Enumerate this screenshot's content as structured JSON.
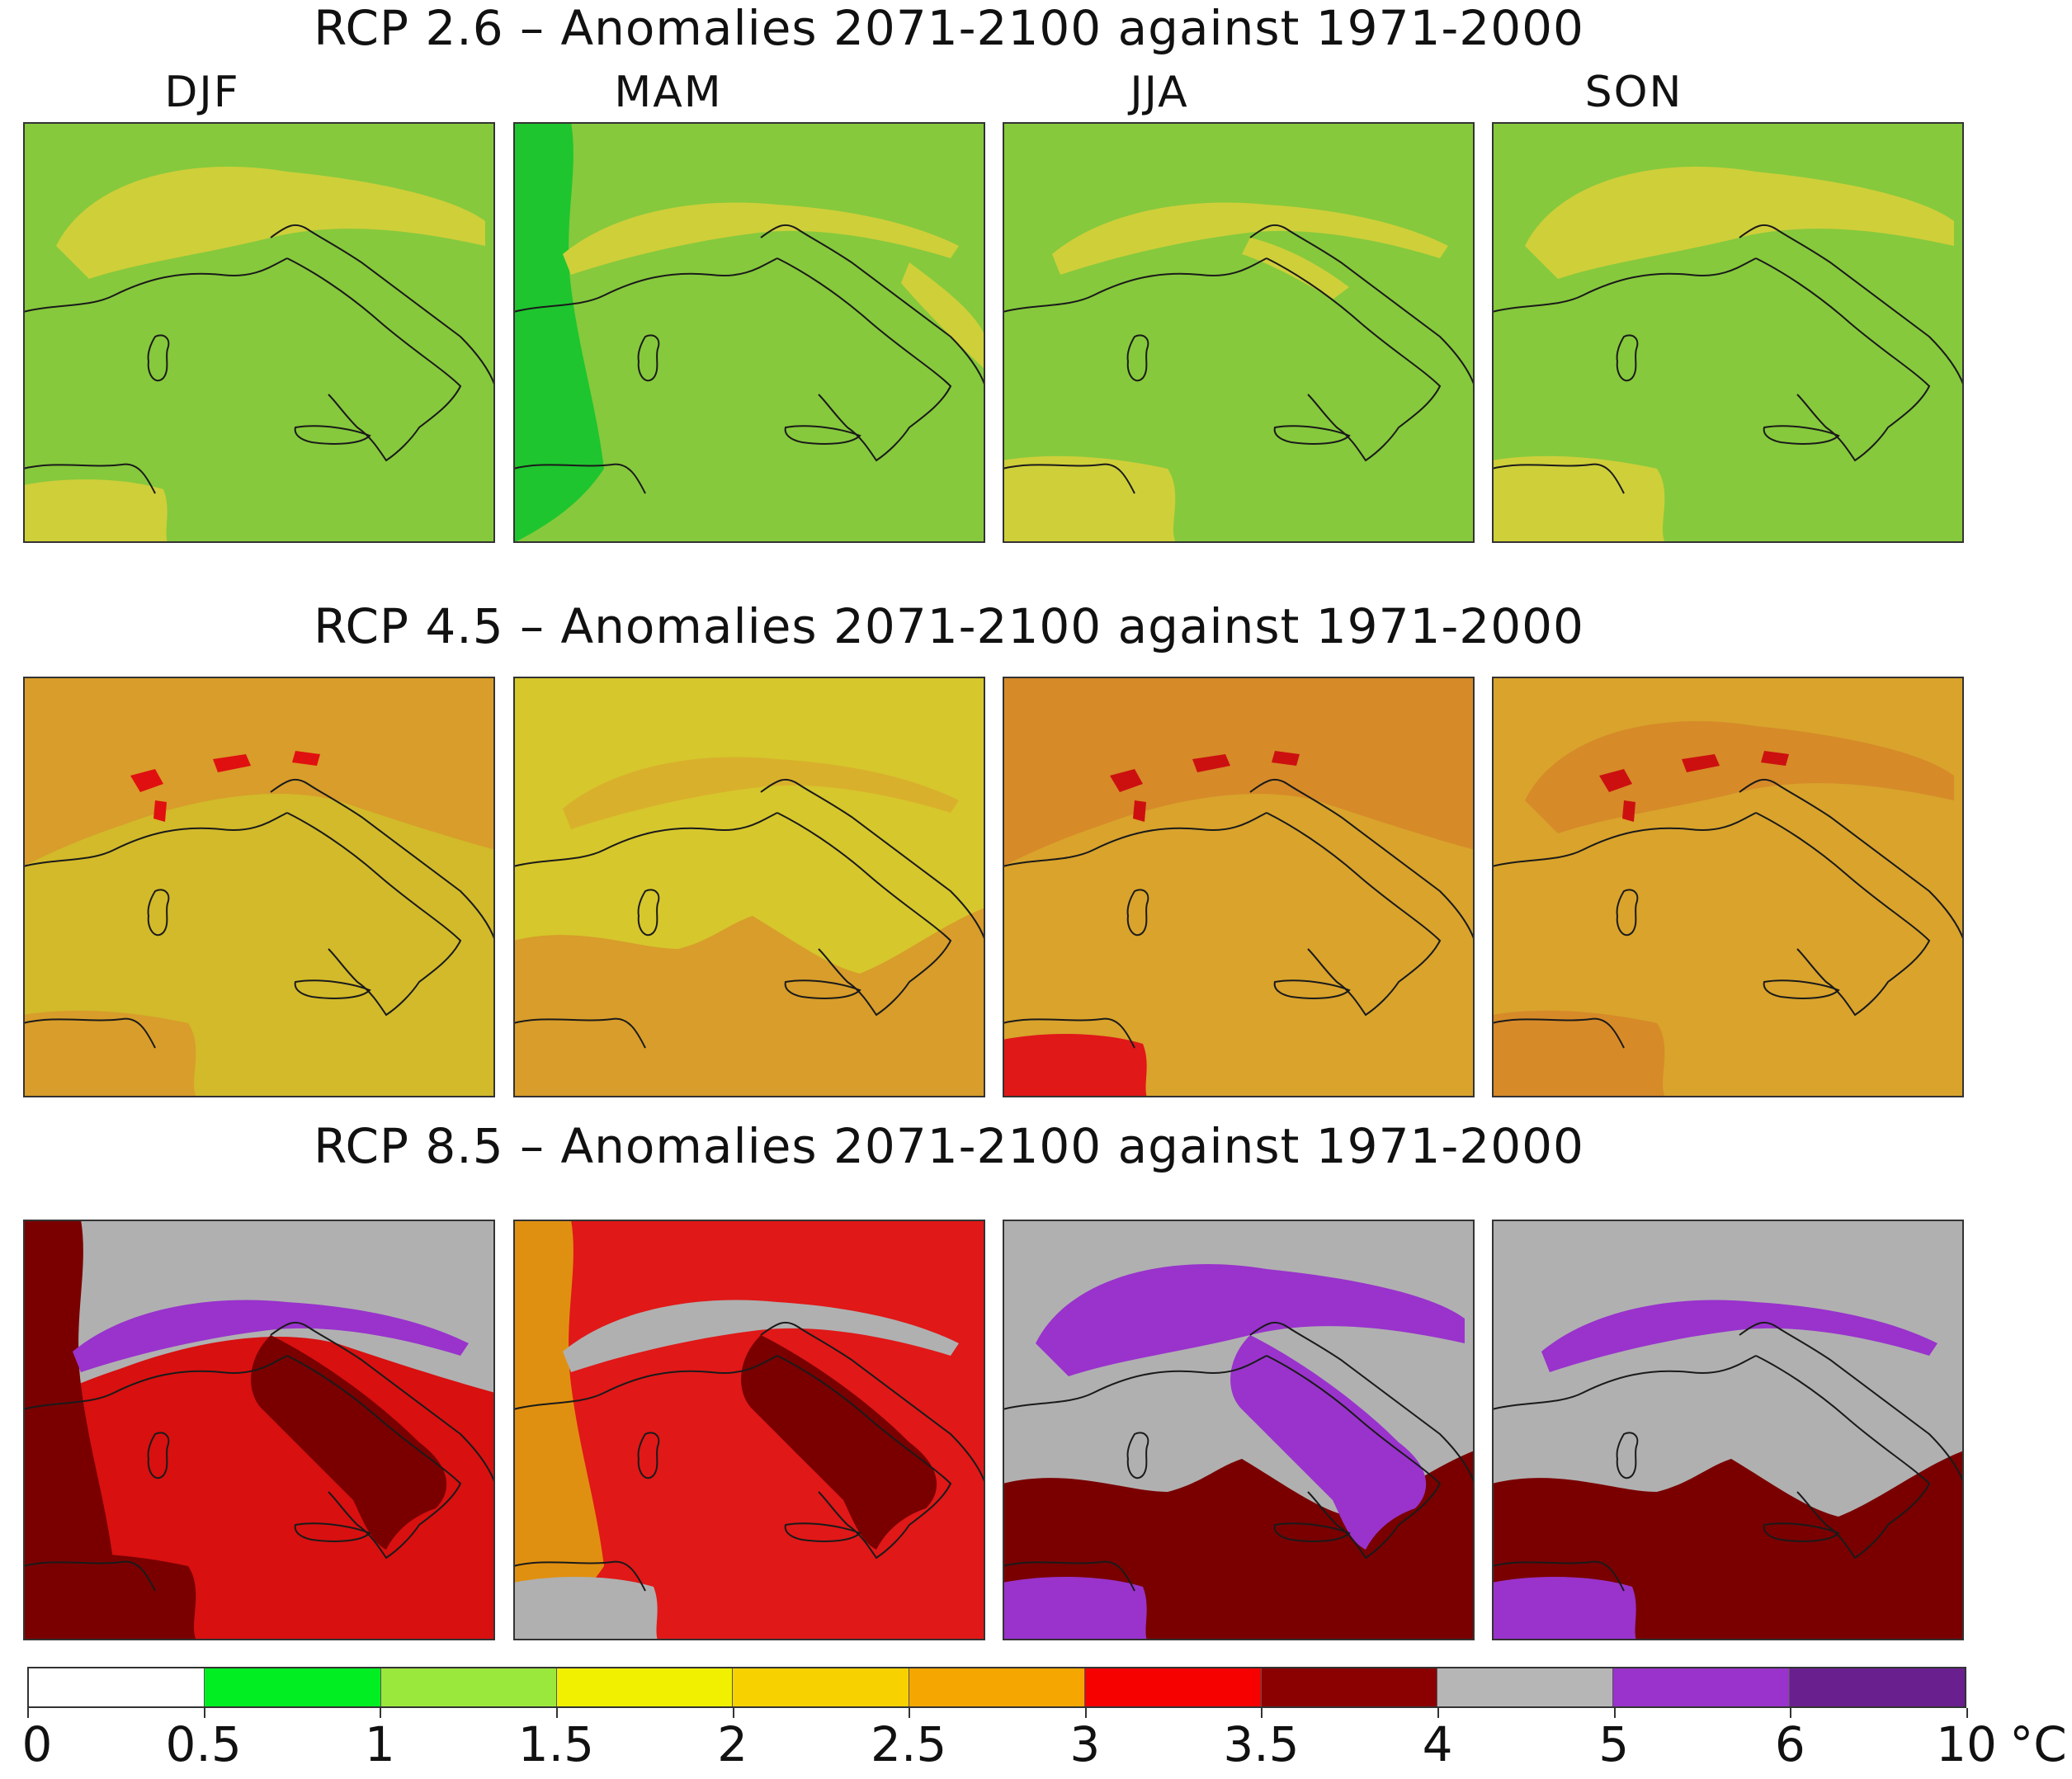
{
  "seasons": [
    "DJF",
    "MAM",
    "JJA",
    "SON"
  ],
  "rows": [
    {
      "title": "RCP 2.6 – Anomalies 2071-2100 against 1971-2000"
    },
    {
      "title": "RCP 4.5 – Anomalies 2071-2100 against 1971-2000"
    },
    {
      "title": "RCP 8.5 – Anomalies 2071-2100 against 1971-2000"
    }
  ],
  "colorbar": {
    "unit": "°C",
    "ticks": [
      "0",
      "0.5",
      "1",
      "1.5",
      "2",
      "2.5",
      "3",
      "3.5",
      "4",
      "5",
      "6",
      "10"
    ],
    "colors": [
      "#ffffff",
      "#00ee22",
      "#9be83c",
      "#f0f000",
      "#f7d200",
      "#f6a600",
      "#f60000",
      "#8b0000",
      "#b6b6b6",
      "#9933cc",
      "#6a1f8f"
    ]
  },
  "panels": [
    [
      {
        "base": "#86c93c",
        "blobs": [
          {
            "c": "#cfcf3a",
            "shape": "alps"
          },
          {
            "c": "#cfcf3a",
            "shape": "africa-small"
          }
        ]
      },
      {
        "base": "#86c93c",
        "blobs": [
          {
            "c": "#1ec52f",
            "shape": "west-strip"
          },
          {
            "c": "#cfcf3a",
            "shape": "alps-thin"
          },
          {
            "c": "#cfcf3a",
            "shape": "adriatic"
          }
        ]
      },
      {
        "base": "#86c93c",
        "blobs": [
          {
            "c": "#cfcf3a",
            "shape": "alps-thin"
          },
          {
            "c": "#cfcf3a",
            "shape": "africa"
          },
          {
            "c": "#cfcf3a",
            "shape": "po"
          }
        ]
      },
      {
        "base": "#86c93c",
        "blobs": [
          {
            "c": "#cfcf3a",
            "shape": "alps"
          },
          {
            "c": "#cfcf3a",
            "shape": "africa"
          }
        ]
      }
    ],
    [
      {
        "base": "#d2ba2a",
        "blobs": [
          {
            "c": "#d89d2a",
            "shape": "north"
          },
          {
            "c": "#e01010",
            "shape": "alps-spots"
          },
          {
            "c": "#d89d2a",
            "shape": "africa"
          }
        ]
      },
      {
        "base": "#d6c72c",
        "blobs": [
          {
            "c": "#d9b02c",
            "shape": "alps-thin"
          },
          {
            "c": "#d89d2a",
            "shape": "africa"
          },
          {
            "c": "#d89d2a",
            "shape": "south"
          }
        ]
      },
      {
        "base": "#d9a32c",
        "blobs": [
          {
            "c": "#d68a28",
            "shape": "north"
          },
          {
            "c": "#cc1010",
            "shape": "alps-spots"
          },
          {
            "c": "#e01818",
            "shape": "africa-small"
          }
        ]
      },
      {
        "base": "#d9a32c",
        "blobs": [
          {
            "c": "#d68a28",
            "shape": "alps"
          },
          {
            "c": "#cc1010",
            "shape": "alps-spots"
          },
          {
            "c": "#d68a28",
            "shape": "africa"
          }
        ]
      }
    ],
    [
      {
        "base": "#d81010",
        "blobs": [
          {
            "c": "#b0b0b0",
            "shape": "north"
          },
          {
            "c": "#7a0000",
            "shape": "west-strip"
          },
          {
            "c": "#9933cc",
            "shape": "alps-thin"
          },
          {
            "c": "#7a0000",
            "shape": "italy"
          },
          {
            "c": "#7a0000",
            "shape": "africa"
          }
        ]
      },
      {
        "base": "#e01818",
        "blobs": [
          {
            "c": "#e09010",
            "shape": "west-strip"
          },
          {
            "c": "#b0b0b0",
            "shape": "alps-thin"
          },
          {
            "c": "#7a0000",
            "shape": "italy"
          },
          {
            "c": "#b0b0b0",
            "shape": "africa-small"
          }
        ]
      },
      {
        "base": "#b0b0b0",
        "blobs": [
          {
            "c": "#9933cc",
            "shape": "alps"
          },
          {
            "c": "#7a0000",
            "shape": "south"
          },
          {
            "c": "#9933cc",
            "shape": "italy"
          },
          {
            "c": "#9933cc",
            "shape": "africa-small"
          }
        ]
      },
      {
        "base": "#b0b0b0",
        "blobs": [
          {
            "c": "#9933cc",
            "shape": "alps-thin"
          },
          {
            "c": "#7a0000",
            "shape": "south"
          },
          {
            "c": "#9933cc",
            "shape": "africa-small"
          }
        ]
      }
    ]
  ]
}
